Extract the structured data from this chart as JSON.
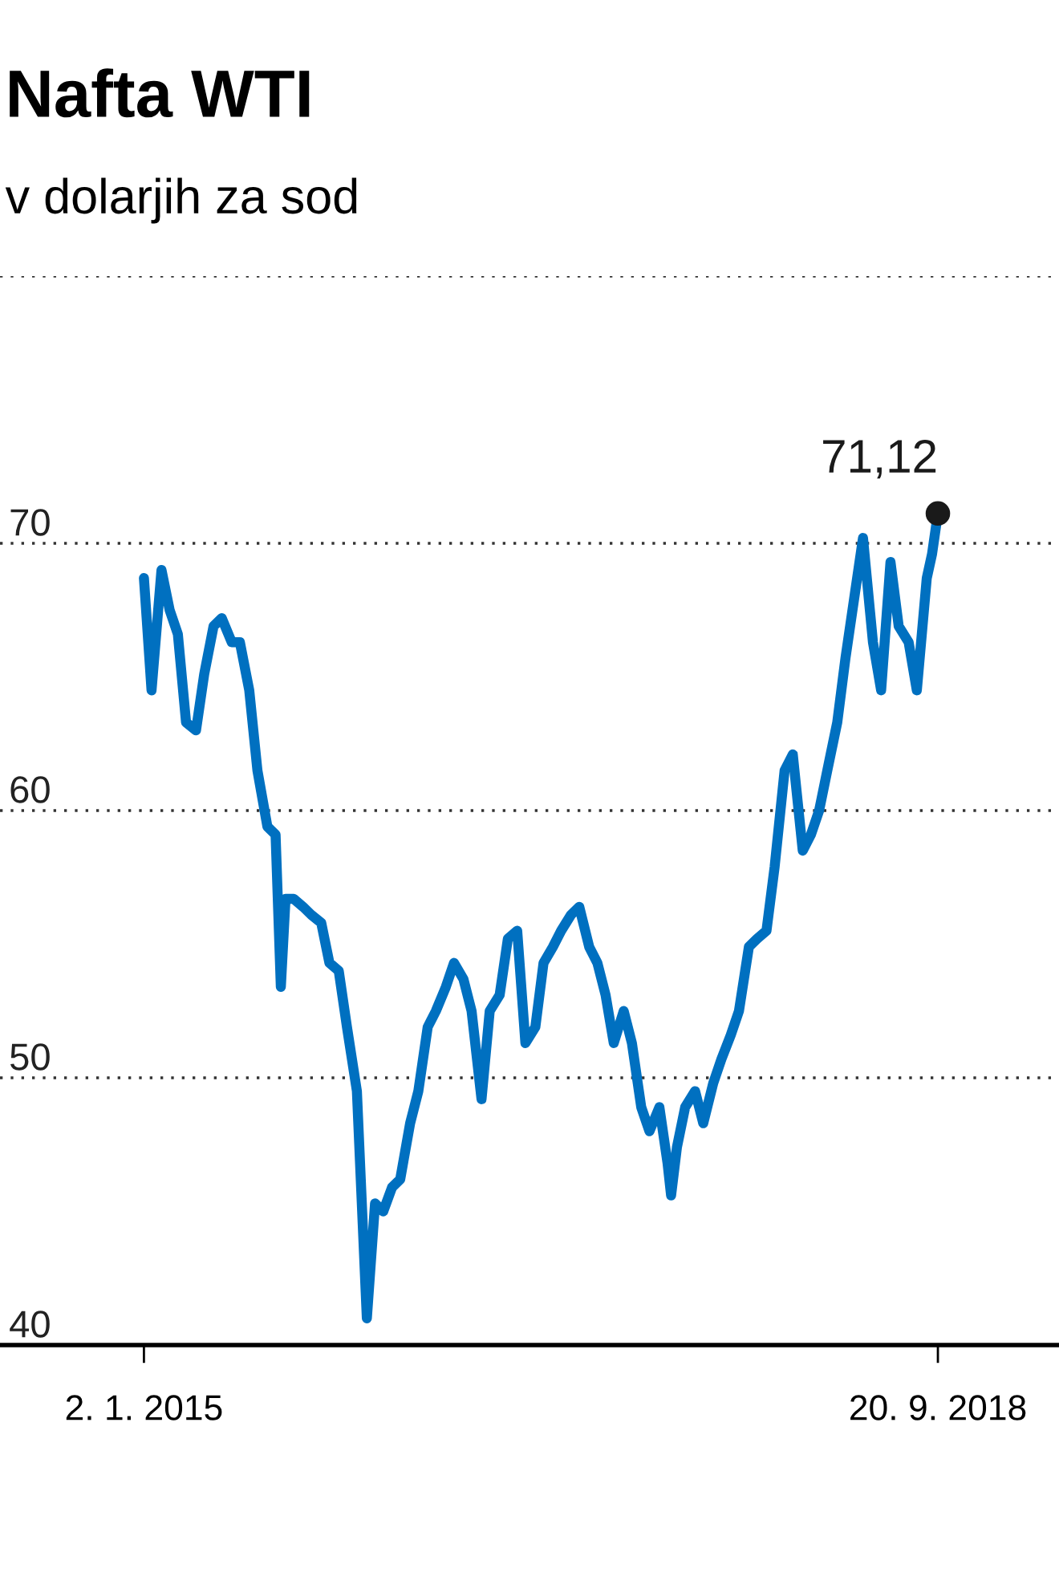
{
  "chart_data": {
    "type": "line",
    "title": "Nafta WTI",
    "subtitle": "v dolarjih za sod",
    "x": [
      "2015-01-02",
      "2015-01-15",
      "2015-02-01",
      "2015-02-15",
      "2015-03-01",
      "2015-03-15",
      "2015-04-01",
      "2015-04-15",
      "2015-05-01",
      "2015-05-15",
      "2015-06-01",
      "2015-06-15",
      "2015-07-01",
      "2015-07-15",
      "2015-08-01",
      "2015-08-15",
      "2015-08-24",
      "2015-09-01",
      "2015-09-15",
      "2015-10-01",
      "2015-10-15",
      "2015-11-01",
      "2015-11-15",
      "2015-12-01",
      "2015-12-15",
      "2016-01-01",
      "2016-01-18",
      "2016-02-01",
      "2016-02-15",
      "2016-03-01",
      "2016-03-15",
      "2016-04-01",
      "2016-04-15",
      "2016-05-01",
      "2016-05-15",
      "2016-06-01",
      "2016-06-15",
      "2016-07-01",
      "2016-07-15",
      "2016-08-01",
      "2016-08-15",
      "2016-09-01",
      "2016-09-15",
      "2016-10-01",
      "2016-10-15",
      "2016-11-01",
      "2016-11-15",
      "2016-12-01",
      "2016-12-15",
      "2017-01-01",
      "2017-01-15",
      "2017-02-01",
      "2017-02-15",
      "2017-03-01",
      "2017-03-15",
      "2017-04-01",
      "2017-04-15",
      "2017-05-01",
      "2017-05-15",
      "2017-06-01",
      "2017-06-15",
      "2017-06-21",
      "2017-07-01",
      "2017-07-15",
      "2017-08-01",
      "2017-08-15",
      "2017-09-01",
      "2017-09-15",
      "2017-10-01",
      "2017-10-15",
      "2017-11-01",
      "2017-11-15",
      "2017-12-01",
      "2017-12-15",
      "2018-01-01",
      "2018-01-15",
      "2018-02-01",
      "2018-02-15",
      "2018-03-01",
      "2018-03-15",
      "2018-04-01",
      "2018-04-15",
      "2018-05-01",
      "2018-05-15",
      "2018-06-01",
      "2018-06-15",
      "2018-07-01",
      "2018-07-15",
      "2018-08-01",
      "2018-08-15",
      "2018-09-01",
      "2018-09-10",
      "2018-09-20"
    ],
    "series": [
      {
        "color": "#0070c0",
        "values": [
          68.7,
          64.5,
          69.0,
          67.5,
          66.6,
          63.3,
          63.0,
          65.1,
          66.9,
          67.2,
          66.3,
          66.3,
          64.5,
          61.5,
          59.4,
          59.1,
          53.4,
          56.7,
          56.7,
          56.4,
          56.1,
          55.8,
          54.3,
          54.0,
          51.9,
          49.5,
          41.0,
          45.3,
          45.0,
          45.9,
          46.2,
          48.3,
          49.5,
          51.9,
          52.5,
          53.4,
          54.3,
          53.7,
          52.5,
          49.2,
          52.5,
          53.1,
          55.2,
          55.5,
          51.3,
          51.9,
          54.3,
          54.9,
          55.5,
          56.1,
          56.4,
          54.9,
          54.3,
          53.1,
          51.3,
          52.5,
          51.3,
          48.9,
          48.0,
          48.9,
          46.8,
          45.6,
          47.4,
          48.9,
          49.5,
          48.3,
          49.8,
          50.7,
          51.6,
          52.5,
          54.9,
          55.2,
          55.5,
          57.9,
          61.5,
          62.1,
          58.5,
          59.1,
          60.0,
          61.5,
          63.3,
          65.7,
          68.1,
          70.2,
          66.3,
          64.5,
          69.3,
          66.9,
          66.3,
          64.5,
          68.7,
          69.6,
          71.12
        ]
      }
    ],
    "xlim": [
      "2014-05-01",
      "2019-04-15"
    ],
    "xticks": [
      {
        "value": "2015-01-02",
        "label": "2. 1. 2015"
      },
      {
        "value": "2018-09-20",
        "label": "20. 9. 2018"
      }
    ],
    "ylim": [
      40,
      80
    ],
    "yticks": [
      40,
      50,
      60,
      70,
      {
        "value": 80,
        "label": null
      }
    ],
    "grid": "y",
    "annotations": [
      {
        "text": "71,12",
        "x": "2018-09-20",
        "y": 71.12
      }
    ]
  }
}
